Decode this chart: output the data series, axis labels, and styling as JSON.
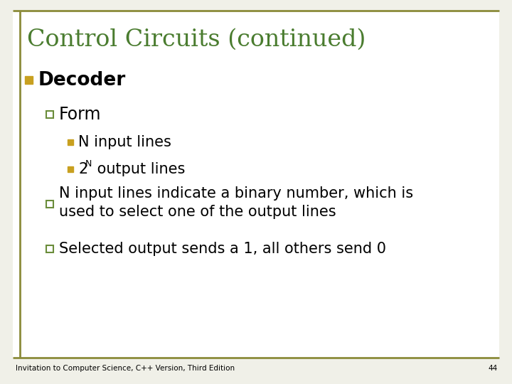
{
  "title": "Control Circuits (continued)",
  "title_color": "#4a7c2f",
  "background_color": "#f0f0e8",
  "border_color": "#8b8b3a",
  "bullet1_marker_color": "#c8a020",
  "bullet1_text": "Decoder",
  "bullet1_text_color": "#000000",
  "bullet2_marker_edge": "#6a8c3a",
  "bullet2_text_color": "#000000",
  "bullet3_marker_color": "#c8a020",
  "bullet3_text_color": "#000000",
  "bullet4_text1": "N input lines indicate a binary number, which is",
  "bullet4_text2": "used to select one of the output lines",
  "bullet5_text": "Selected output sends a 1, all others send 0",
  "footer_text": "Invitation to Computer Science, C++ Version, Third Edition",
  "page_number": "44",
  "footer_color": "#000000",
  "slide_white": "#ffffff"
}
